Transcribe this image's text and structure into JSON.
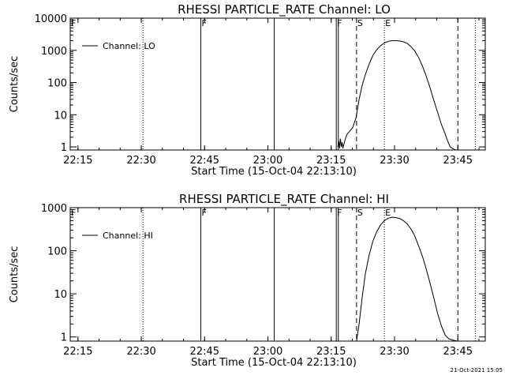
{
  "chart_data": [
    {
      "type": "line",
      "title": "RHESSI PARTICLE_RATE Channel: LO",
      "xlabel": "Start Time (15-Oct-04 22:13:10)",
      "ylabel": "Counts/sec",
      "yscale": "log",
      "grid": false,
      "legend": "top-left",
      "xlim": [
        22.2194,
        23.8583
      ],
      "ylim": [
        0.8,
        10000
      ],
      "xticks": [
        {
          "value": 22.25,
          "label": "22:15"
        },
        {
          "value": 22.5,
          "label": "22:30"
        },
        {
          "value": 22.75,
          "label": "22:45"
        },
        {
          "value": 23.0,
          "label": "23:00"
        },
        {
          "value": 23.25,
          "label": "23:15"
        },
        {
          "value": 23.5,
          "label": "23:30"
        },
        {
          "value": 23.75,
          "label": "23:45"
        }
      ],
      "yticks": [
        {
          "value": 1,
          "label": "1"
        },
        {
          "value": 10,
          "label": "10"
        },
        {
          "value": 100,
          "label": "100"
        },
        {
          "value": 1000,
          "label": "1000"
        },
        {
          "value": 10000,
          "label": "10000"
        }
      ],
      "series": [
        {
          "name": "Channel: LO",
          "x": [
            23.276,
            23.28,
            23.283,
            23.286,
            23.29,
            23.293,
            23.296,
            23.3,
            23.306,
            23.313,
            23.322,
            23.335,
            23.348,
            23.36,
            23.372,
            23.385,
            23.4,
            23.415,
            23.43,
            23.445,
            23.46,
            23.475,
            23.49,
            23.505,
            23.52,
            23.535,
            23.55,
            23.565,
            23.58,
            23.595,
            23.61,
            23.625,
            23.64,
            23.655,
            23.67,
            23.685,
            23.7,
            23.71,
            23.72,
            23.728,
            23.735,
            23.742
          ],
          "y": [
            1.0,
            1.5,
            0.9,
            1.8,
            1.0,
            1.4,
            0.9,
            1.2,
            1.8,
            2.5,
            3.0,
            4.0,
            8.0,
            30,
            80,
            180,
            380,
            700,
            1050,
            1400,
            1700,
            1900,
            2000,
            2000,
            1950,
            1850,
            1650,
            1300,
            950,
            600,
            330,
            160,
            70,
            28,
            12,
            5.0,
            2.5,
            1.5,
            1.0,
            0.9,
            0.85,
            0.8
          ]
        }
      ],
      "markers": [
        {
          "x": 22.2194,
          "label": "F",
          "style": "none"
        },
        {
          "x": 22.5067,
          "label": "",
          "style": "dotted"
        },
        {
          "x": 22.735,
          "label": "F",
          "style": "solid"
        },
        {
          "x": 23.025,
          "label": "",
          "style": "solid"
        },
        {
          "x": 23.27,
          "label": "F",
          "style": "solid"
        },
        {
          "x": 23.278,
          "label": "",
          "style": "solid"
        },
        {
          "x": 23.35,
          "label": "S",
          "style": "dashed"
        },
        {
          "x": 23.46,
          "label": "E",
          "style": "dotted"
        },
        {
          "x": 23.75,
          "label": "",
          "style": "dashed"
        },
        {
          "x": 23.819,
          "label": "",
          "style": "dotted"
        }
      ]
    },
    {
      "type": "line",
      "title": "RHESSI PARTICLE_RATE Channel: HI",
      "xlabel": "Start Time (15-Oct-04 22:13:10)",
      "ylabel": "Counts/sec",
      "yscale": "log",
      "grid": false,
      "legend": "top-left",
      "xlim": [
        22.2194,
        23.8583
      ],
      "ylim": [
        0.8,
        1000
      ],
      "xticks": [
        {
          "value": 22.25,
          "label": "22:15"
        },
        {
          "value": 22.5,
          "label": "22:30"
        },
        {
          "value": 22.75,
          "label": "22:45"
        },
        {
          "value": 23.0,
          "label": "23:00"
        },
        {
          "value": 23.25,
          "label": "23:15"
        },
        {
          "value": 23.5,
          "label": "23:30"
        },
        {
          "value": 23.75,
          "label": "23:45"
        }
      ],
      "yticks": [
        {
          "value": 1,
          "label": "1"
        },
        {
          "value": 10,
          "label": "10"
        },
        {
          "value": 100,
          "label": "100"
        },
        {
          "value": 1000,
          "label": "1000"
        }
      ],
      "series": [
        {
          "name": "Channel: HI",
          "x": [
            23.35,
            23.36,
            23.372,
            23.385,
            23.4,
            23.415,
            23.43,
            23.445,
            23.46,
            23.475,
            23.49,
            23.505,
            23.52,
            23.535,
            23.55,
            23.565,
            23.58,
            23.595,
            23.61,
            23.625,
            23.64,
            23.655,
            23.67,
            23.685,
            23.7,
            23.715,
            23.73,
            23.74,
            23.75
          ],
          "y": [
            0.8,
            2.0,
            8.0,
            30,
            80,
            170,
            280,
            400,
            500,
            570,
            600,
            590,
            560,
            500,
            420,
            320,
            220,
            130,
            75,
            38,
            18,
            8.0,
            3.5,
            1.8,
            1.1,
            0.9,
            0.85,
            0.82,
            0.8
          ]
        }
      ],
      "markers": [
        {
          "x": 22.2194,
          "label": "F",
          "style": "none"
        },
        {
          "x": 22.5067,
          "label": "",
          "style": "dotted"
        },
        {
          "x": 22.735,
          "label": "F",
          "style": "solid"
        },
        {
          "x": 23.025,
          "label": "",
          "style": "solid"
        },
        {
          "x": 23.27,
          "label": "F",
          "style": "solid"
        },
        {
          "x": 23.278,
          "label": "",
          "style": "solid"
        },
        {
          "x": 23.35,
          "label": "S",
          "style": "dashed"
        },
        {
          "x": 23.46,
          "label": "E",
          "style": "dotted"
        },
        {
          "x": 23.75,
          "label": "",
          "style": "dashed"
        },
        {
          "x": 23.819,
          "label": "",
          "style": "dotted"
        }
      ]
    }
  ],
  "footer": {
    "date_stamp": "21-Oct-2021 15:05"
  }
}
